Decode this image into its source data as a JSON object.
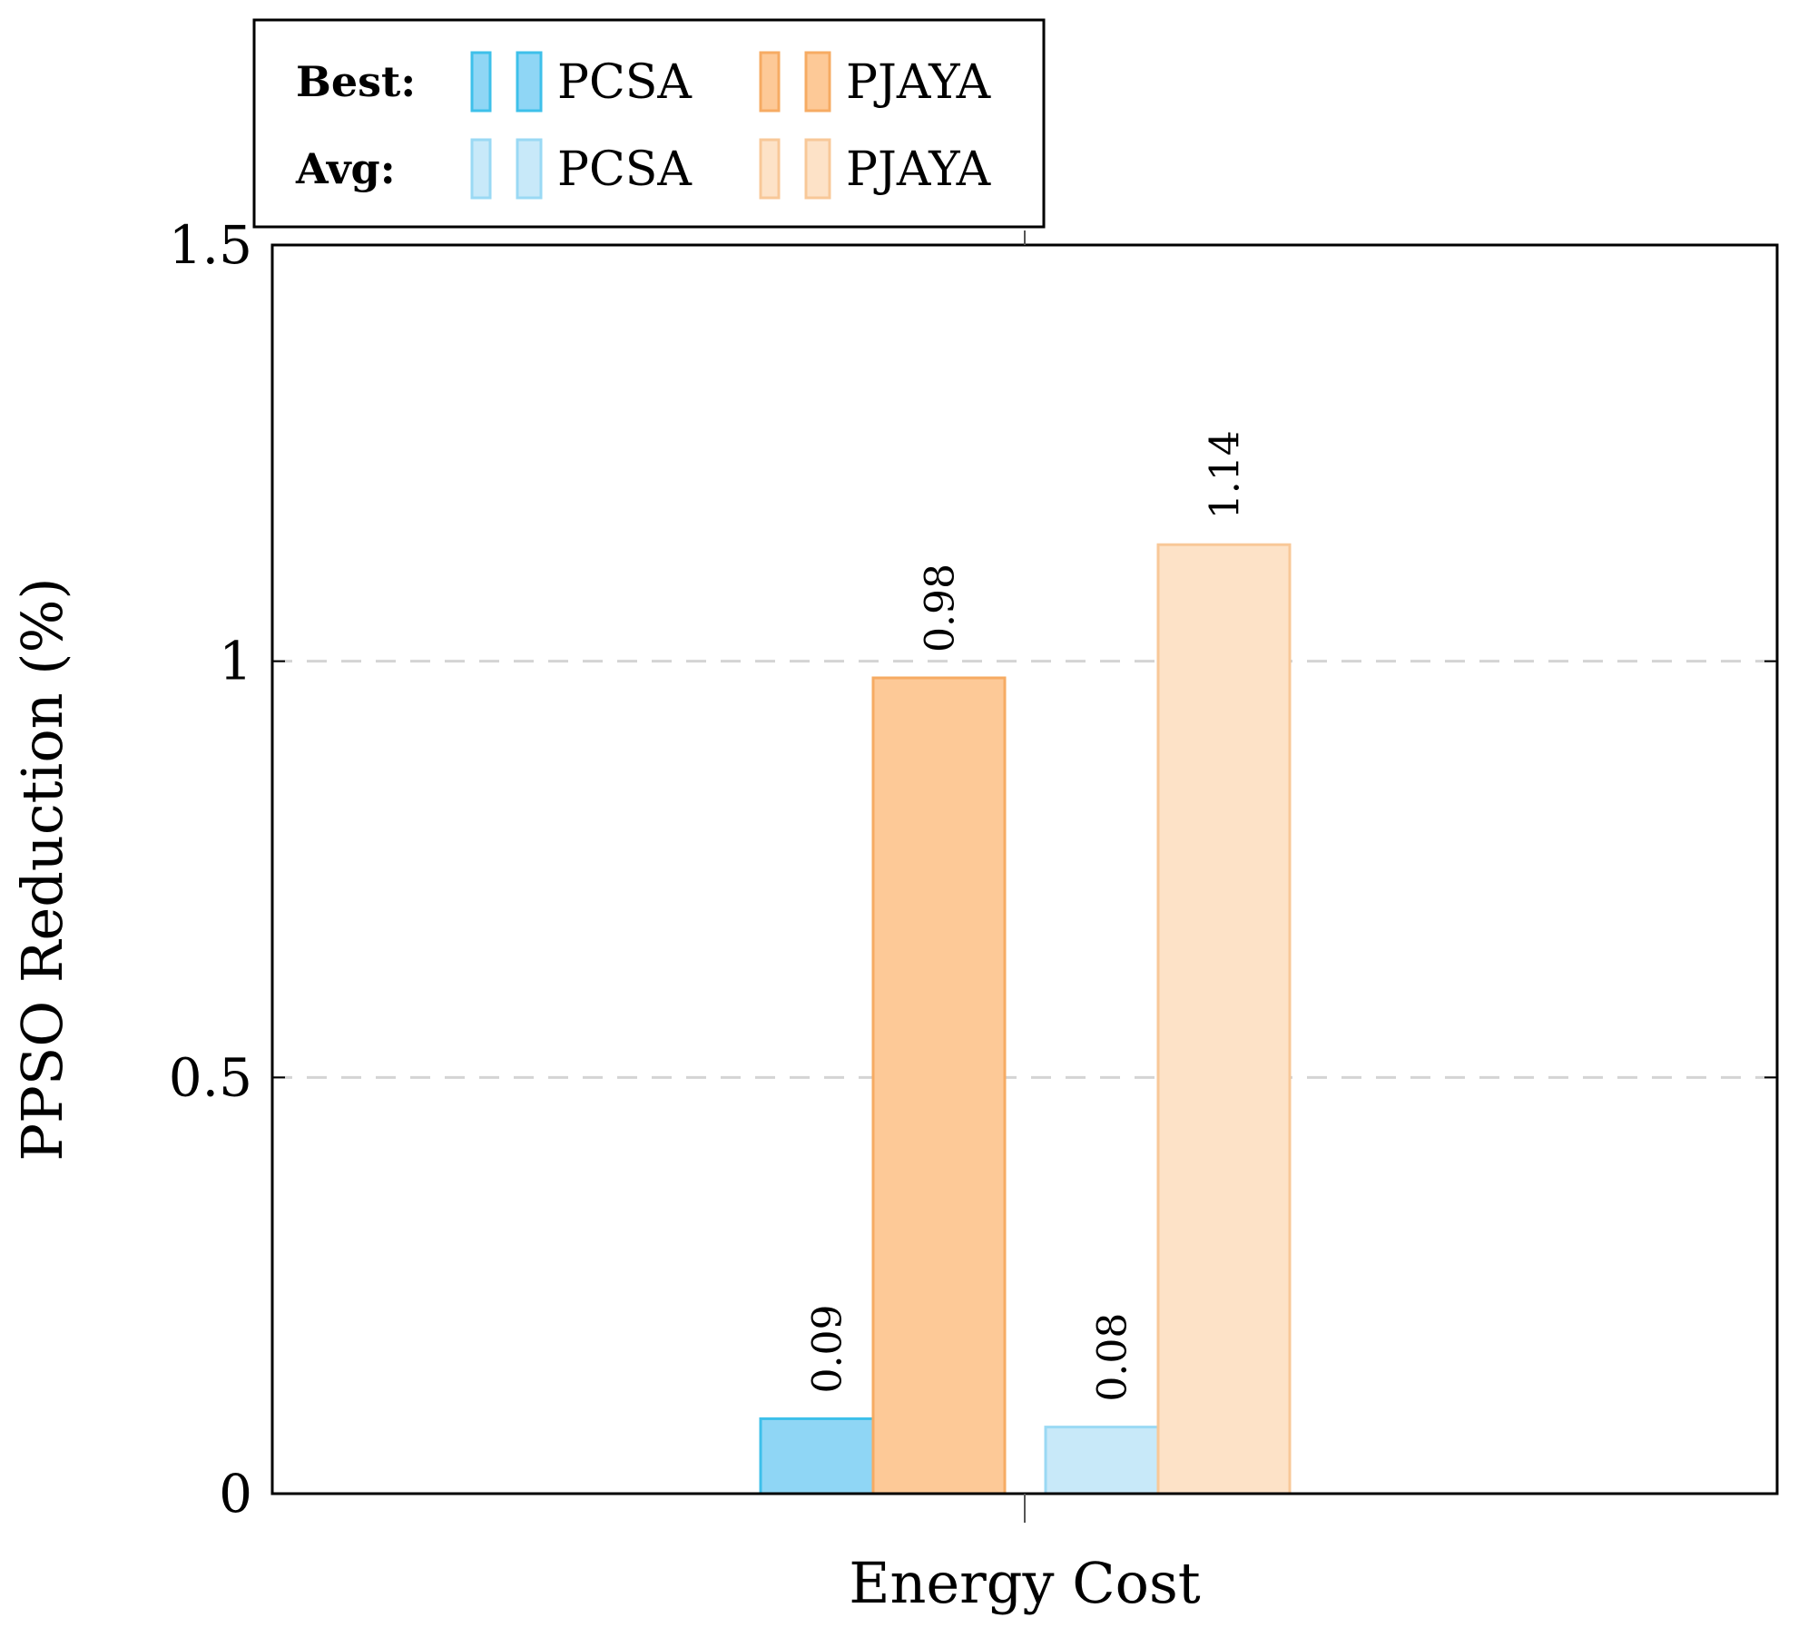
{
  "chart_data": {
    "type": "bar",
    "categories": [
      "Energy Cost"
    ],
    "series": [
      {
        "name": "PCSA",
        "group": "Best",
        "values": [
          0.09
        ],
        "fill": "#8fd6f5",
        "stroke": "#3ec0ea"
      },
      {
        "name": "PJAYA",
        "group": "Best",
        "values": [
          0.98
        ],
        "fill": "#fdc997",
        "stroke": "#f6ab63"
      },
      {
        "name": "PCSA",
        "group": "Avg",
        "values": [
          0.08
        ],
        "fill": "#c8e9f9",
        "stroke": "#9ad9f4"
      },
      {
        "name": "PJAYA",
        "group": "Avg",
        "values": [
          1.14
        ],
        "fill": "#fde2c7",
        "stroke": "#f8c898"
      }
    ],
    "data_labels": [
      "0.09",
      "0.98",
      "0.08",
      "1.14"
    ],
    "title": "",
    "xlabel": "Energy Cost",
    "ylabel": "PPSO Reduction (%)",
    "ylim": [
      0,
      1.5
    ],
    "yticks": [
      0,
      0.5,
      1,
      1.5
    ],
    "ytick_labels": [
      "0",
      "0.5",
      "1",
      "1.5"
    ],
    "grid": "horizontal dashed",
    "legend": {
      "placement": "top-left, above plot",
      "rows": [
        {
          "label": "Best:",
          "entries": [
            "PCSA",
            "PJAYA"
          ]
        },
        {
          "label": "Avg:",
          "entries": [
            "PCSA",
            "PJAYA"
          ]
        }
      ]
    },
    "colors": {
      "grid": "#d4d4d4",
      "axis": "#000000"
    }
  }
}
